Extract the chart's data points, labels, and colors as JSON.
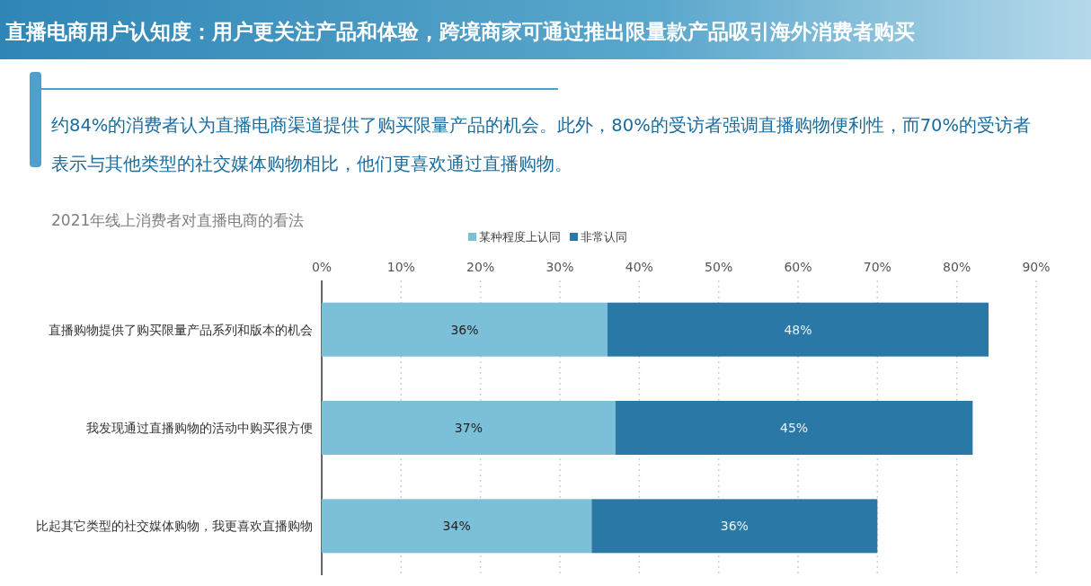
{
  "chart_data": {
    "type": "bar",
    "orientation": "horizontal",
    "stacked": true,
    "title": "直播电商用户认知度：用户更关注产品和体验，跨境商家可通过推出限量款产品吸引海外消费者购买",
    "subtitle": "2021年线上消费者对直播电商的看法",
    "annotations": [
      "约84%的消费者认为直播电商渠道提供了购买限量产品的机会。此外，80%的受访者强调直播购物便利性，而70%的受访者表示与其他类型的社交媒体购物相比，他们更喜欢通过直播购物。"
    ],
    "categories": [
      "直播购物提供了购买限量产品系列和版本的机会",
      "我发现通过直播购物的活动中购买很方便",
      "比起其它类型的社交媒体购物，我更喜欢直播购物"
    ],
    "series": [
      {
        "name": "某种程度上认同",
        "color": "#7cbfd8",
        "values": [
          36,
          37,
          34
        ],
        "value_labels": [
          "36%",
          "37%",
          "34%"
        ]
      },
      {
        "name": "非常认同",
        "color": "#2a78a5",
        "values": [
          48,
          45,
          36
        ],
        "value_labels": [
          "48%",
          "45%",
          "36%"
        ]
      }
    ],
    "xlim": [
      0,
      90
    ],
    "xticks": [
      {
        "value": 0,
        "label": "0%"
      },
      {
        "value": 10,
        "label": "10%"
      },
      {
        "value": 20,
        "label": "20%"
      },
      {
        "value": 30,
        "label": "30%"
      },
      {
        "value": 40,
        "label": "40%"
      },
      {
        "value": 50,
        "label": "50%"
      },
      {
        "value": 60,
        "label": "60%"
      },
      {
        "value": 70,
        "label": "70%"
      },
      {
        "value": 80,
        "label": "80%"
      },
      {
        "value": 90,
        "label": "90%"
      }
    ],
    "grid": "x",
    "legend": "top"
  }
}
